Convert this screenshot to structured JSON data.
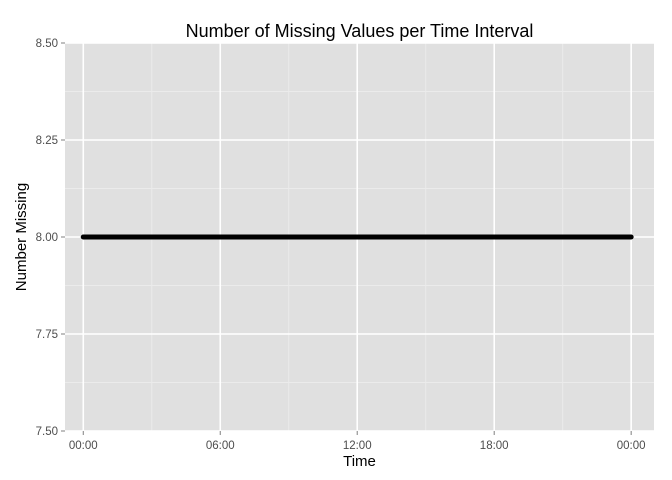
{
  "chart_data": {
    "type": "line",
    "title": "Number of Missing Values per Time Interval",
    "xlabel": "Time",
    "ylabel": "Number Missing",
    "x_ticks": [
      "00:00",
      "06:00",
      "12:00",
      "18:00",
      "00:00"
    ],
    "x_tick_hours": [
      0,
      6,
      12,
      18,
      24
    ],
    "xlim_hours": [
      -0.8,
      25.0
    ],
    "y_ticks": [
      "7.50",
      "7.75",
      "8.00",
      "8.25",
      "8.50"
    ],
    "y_tick_values": [
      7.5,
      7.75,
      8.0,
      8.25,
      8.5
    ],
    "ylim": [
      7.5,
      8.5
    ],
    "grid": true,
    "background": "gray",
    "series": [
      {
        "color": "#000000",
        "x_hours": [
          0,
          24
        ],
        "values": [
          8,
          8
        ]
      }
    ]
  },
  "colors": {
    "panel": "#e0e0e0",
    "grid_major": "#ffffff",
    "grid_minor": "#ebebeb",
    "line": "#000000"
  }
}
